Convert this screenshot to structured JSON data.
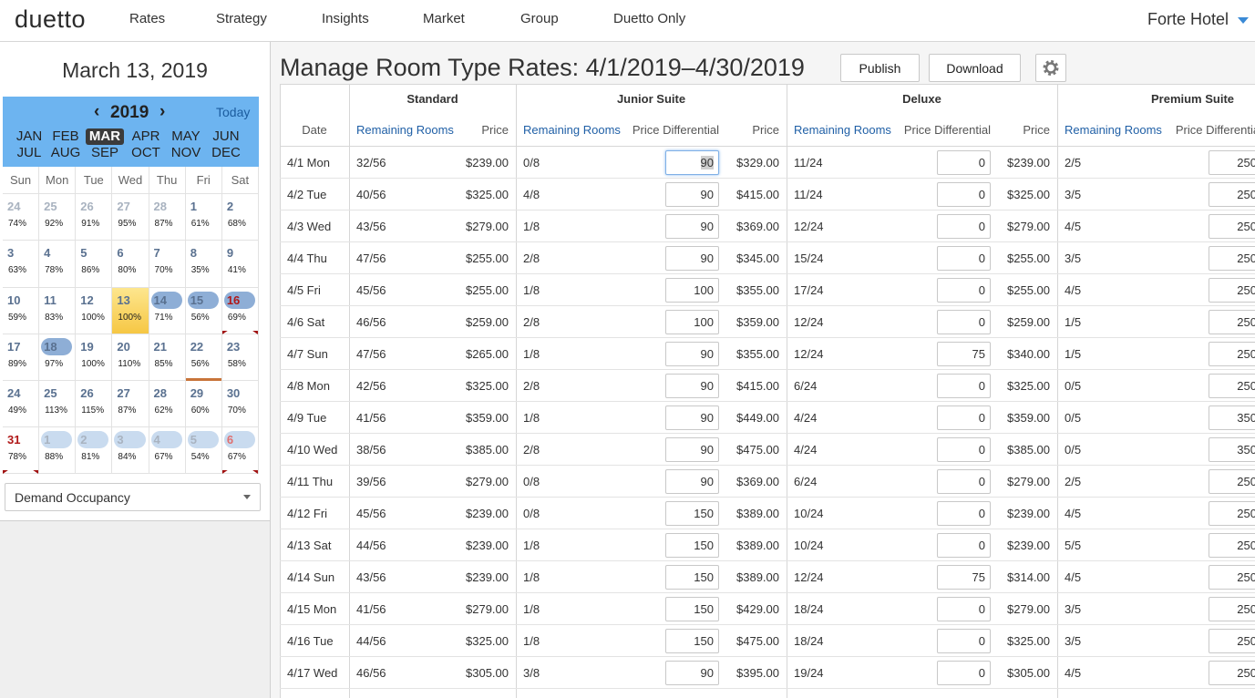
{
  "nav": {
    "logo": "duetto",
    "items": [
      "Rates",
      "Strategy",
      "Insights",
      "Market",
      "Group",
      "Duetto Only"
    ],
    "hotel": "Forte Hotel"
  },
  "sidebar": {
    "date_title": "March 13, 2019",
    "year": "2019",
    "today": "Today",
    "months": [
      "JAN",
      "FEB",
      "MAR",
      "APR",
      "MAY",
      "JUN",
      "JUL",
      "AUG",
      "SEP",
      "OCT",
      "NOV",
      "DEC"
    ],
    "weekdays": [
      "Sun",
      "Mon",
      "Tue",
      "Wed",
      "Thu",
      "Fri",
      "Sat"
    ],
    "weeks": [
      [
        {
          "day": 24,
          "pct": "74%"
        },
        {
          "day": 25,
          "pct": "92%"
        },
        {
          "day": 26,
          "pct": "91%"
        },
        {
          "day": 27,
          "pct": "95%"
        },
        {
          "day": 28,
          "pct": "87%"
        },
        {
          "day": 1,
          "pct": "61%"
        },
        {
          "day": 2,
          "pct": "68%"
        }
      ],
      [
        {
          "day": 3,
          "pct": "63%"
        },
        {
          "day": 4,
          "pct": "78%"
        },
        {
          "day": 5,
          "pct": "86%"
        },
        {
          "day": 6,
          "pct": "80%"
        },
        {
          "day": 7,
          "pct": "70%"
        },
        {
          "day": 8,
          "pct": "35%"
        },
        {
          "day": 9,
          "pct": "41%"
        }
      ],
      [
        {
          "day": 10,
          "pct": "59%"
        },
        {
          "day": 11,
          "pct": "83%"
        },
        {
          "day": 12,
          "pct": "100%"
        },
        {
          "day": 13,
          "pct": "100%"
        },
        {
          "day": 14,
          "pct": "71%"
        },
        {
          "day": 15,
          "pct": "56%"
        },
        {
          "day": 16,
          "pct": "69%"
        }
      ],
      [
        {
          "day": 17,
          "pct": "89%"
        },
        {
          "day": 18,
          "pct": "97%"
        },
        {
          "day": 19,
          "pct": "100%"
        },
        {
          "day": 20,
          "pct": "110%"
        },
        {
          "day": 21,
          "pct": "85%"
        },
        {
          "day": 22,
          "pct": "56%"
        },
        {
          "day": 23,
          "pct": "58%"
        }
      ],
      [
        {
          "day": 24,
          "pct": "49%"
        },
        {
          "day": 25,
          "pct": "113%"
        },
        {
          "day": 26,
          "pct": "115%"
        },
        {
          "day": 27,
          "pct": "87%"
        },
        {
          "day": 28,
          "pct": "62%"
        },
        {
          "day": 29,
          "pct": "60%"
        },
        {
          "day": 30,
          "pct": "70%"
        }
      ],
      [
        {
          "day": 31,
          "pct": "78%"
        },
        {
          "day": 1,
          "pct": "88%"
        },
        {
          "day": 2,
          "pct": "81%"
        },
        {
          "day": 3,
          "pct": "84%"
        },
        {
          "day": 4,
          "pct": "67%"
        },
        {
          "day": 5,
          "pct": "54%"
        },
        {
          "day": 6,
          "pct": "67%"
        }
      ]
    ],
    "dropdown": "Demand Occupancy"
  },
  "main": {
    "title": "Manage Room Type Rates: 4/1/2019–4/30/2019",
    "buttons": [
      "Publish",
      "Download"
    ],
    "table": {
      "groups": [
        "Standard",
        "Junior Suite",
        "Deluxe",
        "Premium Suite"
      ],
      "columns": [
        "Date",
        "Remaining Rooms",
        "Price",
        "Remaining Rooms",
        "Price Differential",
        "Price",
        "Remaining Rooms",
        "Price Differential",
        "Price",
        "Remaining Rooms",
        "Price Differential"
      ],
      "rows": [
        [
          "4/1 Mon",
          "32/56",
          "$239.00",
          "0/8",
          90,
          "$329.00",
          "11/24",
          0,
          "$239.00",
          "2/5",
          250
        ],
        [
          "4/2 Tue",
          "40/56",
          "$325.00",
          "4/8",
          90,
          "$415.00",
          "11/24",
          0,
          "$325.00",
          "3/5",
          250
        ],
        [
          "4/3 Wed",
          "43/56",
          "$279.00",
          "1/8",
          90,
          "$369.00",
          "12/24",
          0,
          "$279.00",
          "4/5",
          250
        ],
        [
          "4/4 Thu",
          "47/56",
          "$255.00",
          "2/8",
          90,
          "$345.00",
          "15/24",
          0,
          "$255.00",
          "3/5",
          250
        ],
        [
          "4/5 Fri",
          "45/56",
          "$255.00",
          "1/8",
          100,
          "$355.00",
          "17/24",
          0,
          "$255.00",
          "4/5",
          250
        ],
        [
          "4/6 Sat",
          "46/56",
          "$259.00",
          "2/8",
          100,
          "$359.00",
          "12/24",
          0,
          "$259.00",
          "1/5",
          250
        ],
        [
          "4/7 Sun",
          "47/56",
          "$265.00",
          "1/8",
          90,
          "$355.00",
          "12/24",
          75,
          "$340.00",
          "1/5",
          250
        ],
        [
          "4/8 Mon",
          "42/56",
          "$325.00",
          "2/8",
          90,
          "$415.00",
          "6/24",
          0,
          "$325.00",
          "0/5",
          250
        ],
        [
          "4/9 Tue",
          "41/56",
          "$359.00",
          "1/8",
          90,
          "$449.00",
          "4/24",
          0,
          "$359.00",
          "0/5",
          350
        ],
        [
          "4/10 Wed",
          "38/56",
          "$385.00",
          "2/8",
          90,
          "$475.00",
          "4/24",
          0,
          "$385.00",
          "0/5",
          350
        ],
        [
          "4/11 Thu",
          "39/56",
          "$279.00",
          "0/8",
          90,
          "$369.00",
          "6/24",
          0,
          "$279.00",
          "2/5",
          250
        ],
        [
          "4/12 Fri",
          "45/56",
          "$239.00",
          "0/8",
          150,
          "$389.00",
          "10/24",
          0,
          "$239.00",
          "4/5",
          250
        ],
        [
          "4/13 Sat",
          "44/56",
          "$239.00",
          "1/8",
          150,
          "$389.00",
          "10/24",
          0,
          "$239.00",
          "5/5",
          250
        ],
        [
          "4/14 Sun",
          "43/56",
          "$239.00",
          "1/8",
          150,
          "$389.00",
          "12/24",
          75,
          "$314.00",
          "4/5",
          250
        ],
        [
          "4/15 Mon",
          "41/56",
          "$279.00",
          "1/8",
          150,
          "$429.00",
          "18/24",
          0,
          "$279.00",
          "3/5",
          250
        ],
        [
          "4/16 Tue",
          "44/56",
          "$325.00",
          "1/8",
          150,
          "$475.00",
          "18/24",
          0,
          "$325.00",
          "3/5",
          250
        ],
        [
          "4/17 Wed",
          "46/56",
          "$305.00",
          "3/8",
          90,
          "$395.00",
          "19/24",
          0,
          "$305.00",
          "4/5",
          250
        ]
      ]
    }
  }
}
